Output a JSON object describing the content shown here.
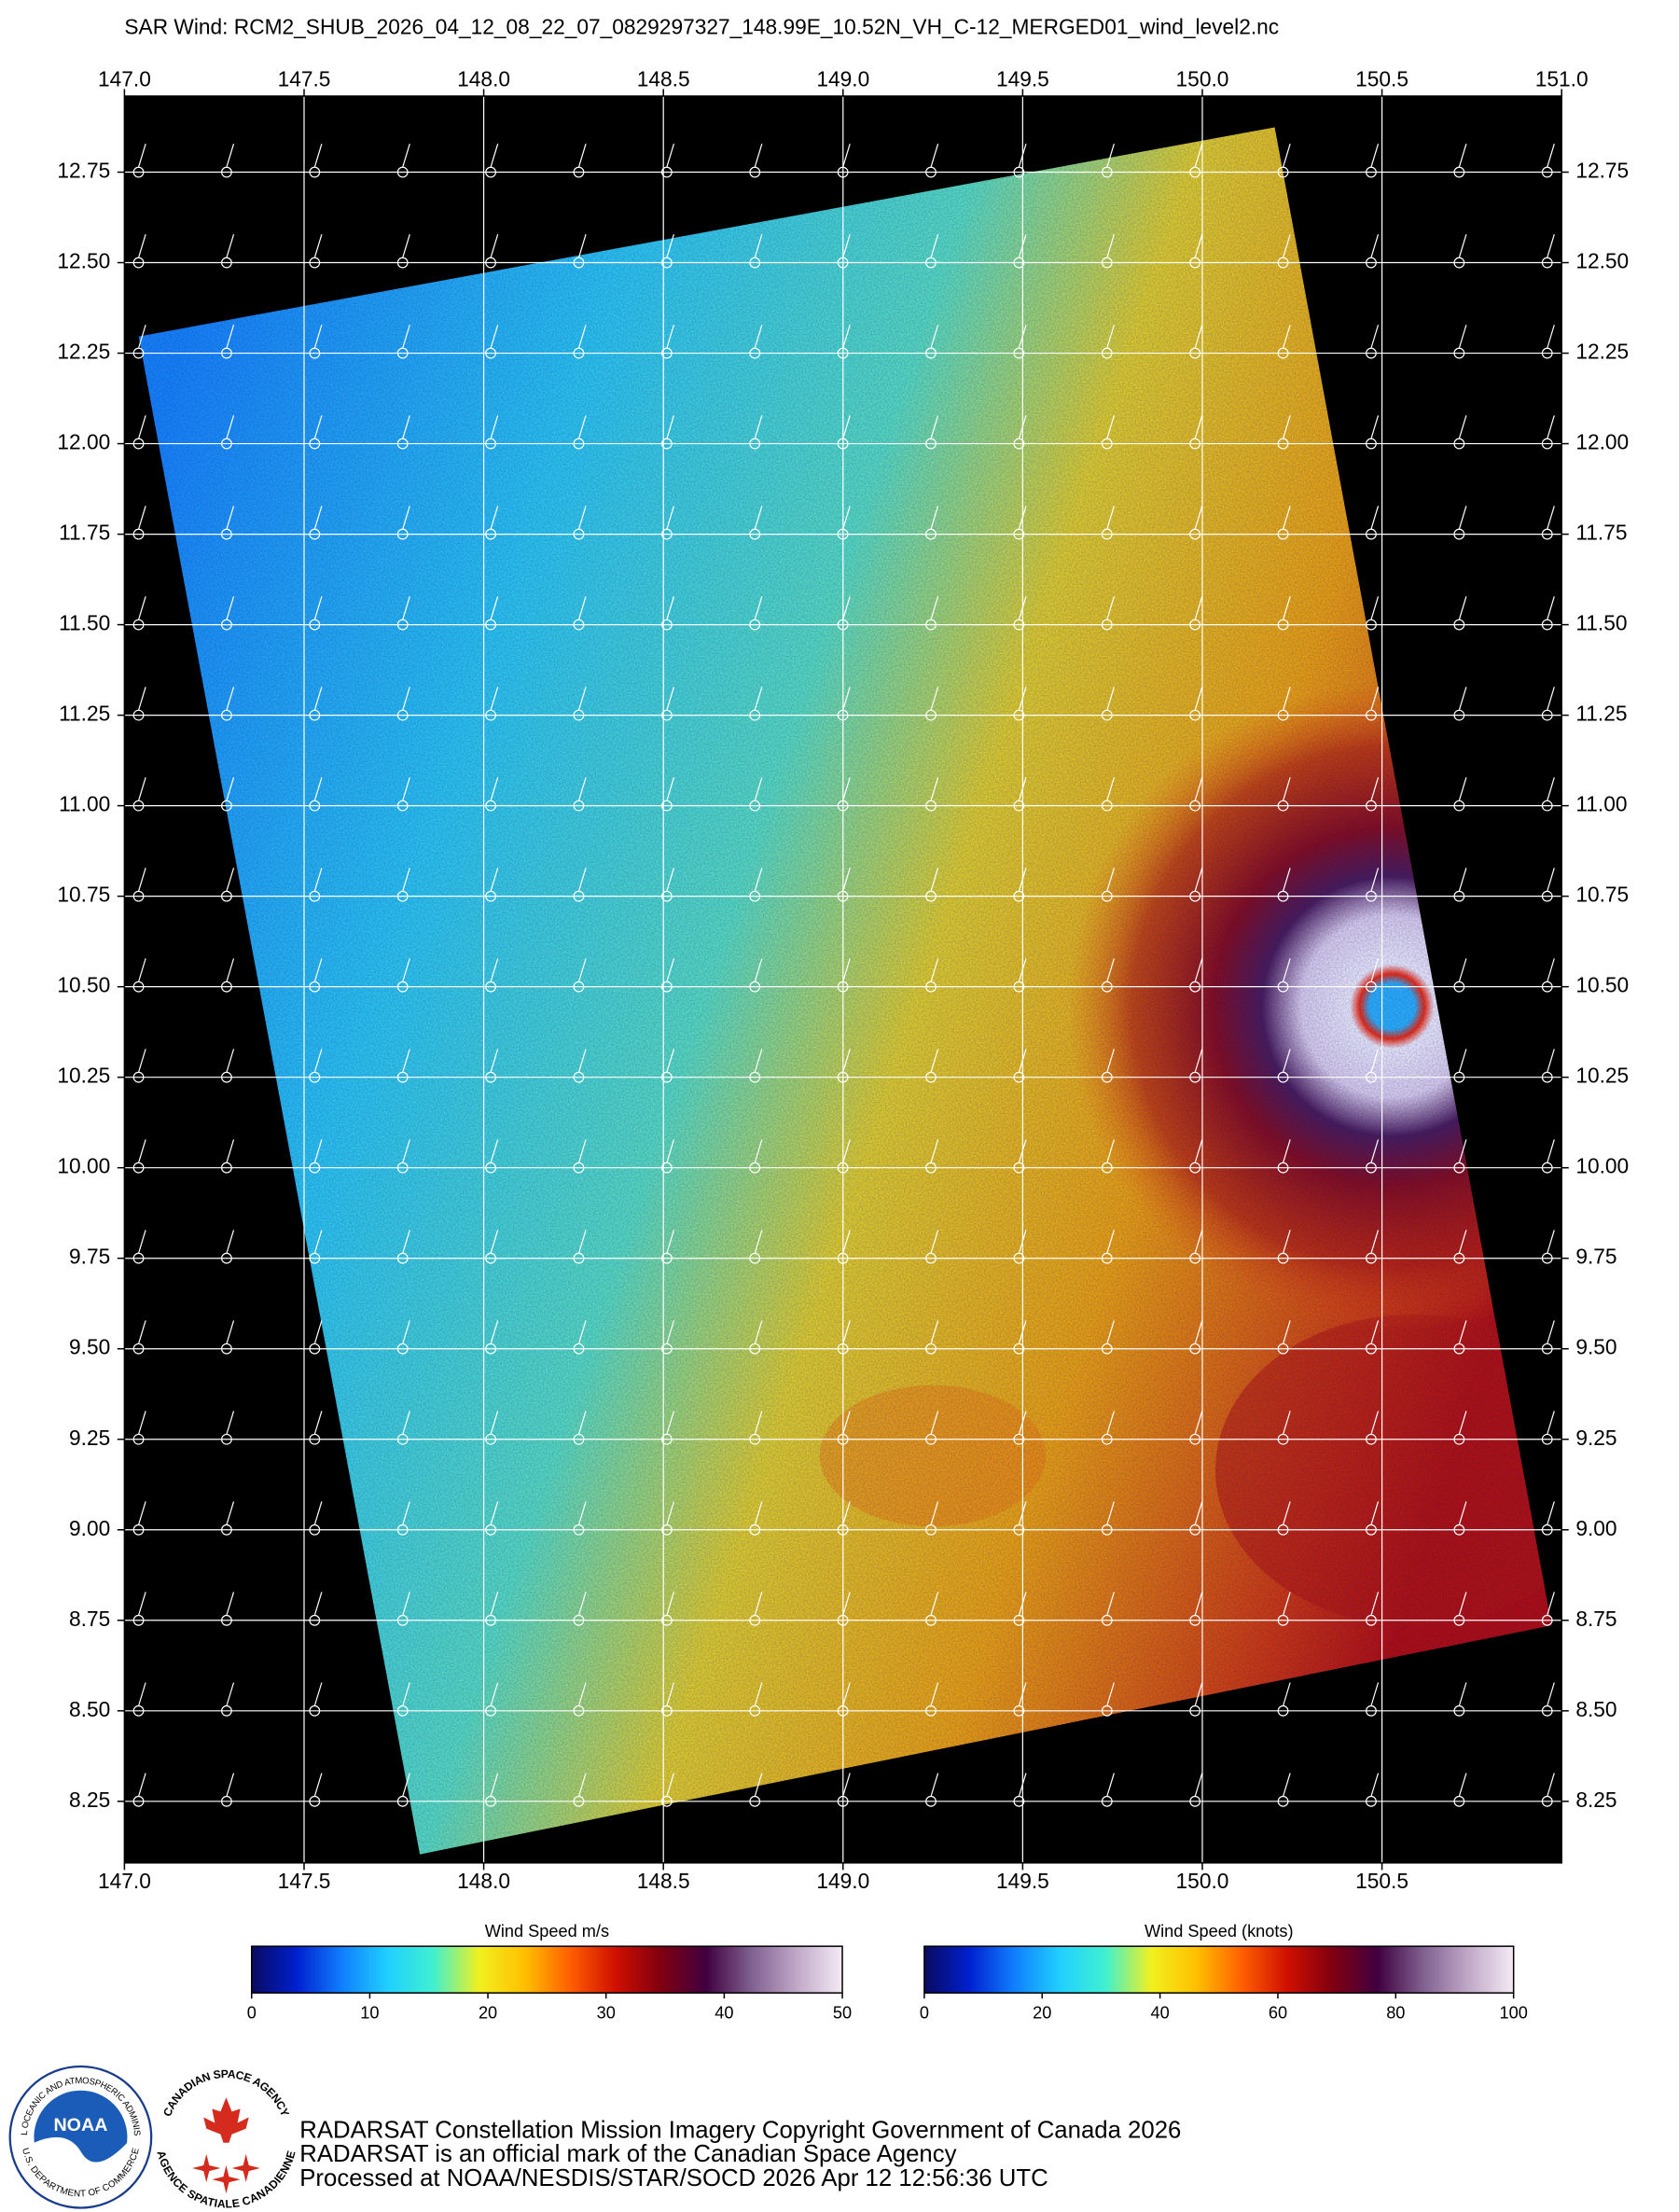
{
  "title": "SAR Wind: RCM2_SHUB_2026_04_12_08_22_07_0829297327_148.99E_10.52N_VH_C-12_MERGED01_wind_level2.nc",
  "chart_data": {
    "type": "map",
    "xlim": [
      147,
      151
    ],
    "ylim": [
      8.08,
      12.96
    ],
    "xticks": [
      {
        "value": 147,
        "label": "147.0"
      },
      147.5,
      {
        "value": 148,
        "label": "148.0"
      },
      148.5,
      {
        "value": 149,
        "label": "149.0"
      },
      149.5,
      {
        "value": 150,
        "label": "150.0"
      },
      150.5,
      {
        "value": 151,
        "label": "151.0"
      }
    ],
    "xticks_bottom": [
      {
        "value": 147,
        "label": "147.0"
      },
      147.5,
      {
        "value": 148,
        "label": "148.0"
      },
      148.5,
      {
        "value": 149,
        "label": "149.0"
      },
      149.5,
      {
        "value": 150,
        "label": "150.0"
      },
      150.5
    ],
    "yticks": [
      12.75,
      {
        "value": 12.5,
        "label": "12.50"
      },
      12.25,
      {
        "value": 12,
        "label": "12.00"
      },
      11.75,
      {
        "value": 11.5,
        "label": "11.50"
      },
      11.25,
      {
        "value": 11,
        "label": "11.00"
      },
      10.75,
      {
        "value": 10.5,
        "label": "10.50"
      },
      10.25,
      {
        "value": 10,
        "label": "10.00"
      },
      9.75,
      {
        "value": 9.5,
        "label": "9.50"
      },
      9.25,
      {
        "value": 9,
        "label": "9.00"
      },
      8.75,
      {
        "value": 8.5,
        "label": "8.50"
      },
      8.25
    ],
    "grid": true
  },
  "colormap": [
    "#0a0a60",
    "#0020d0",
    "#1080ff",
    "#20d0ff",
    "#40f0d0",
    "#f0f020",
    "#ffc000",
    "#ff6000",
    "#d01000",
    "#800010",
    "#400040",
    "#806090",
    "#c0a8c8",
    "#f4eaf4"
  ],
  "colorbars": [
    {
      "title": "Wind Speed m/s",
      "lim": [
        0,
        50
      ],
      "ticks": [
        0,
        10,
        20,
        30,
        40,
        50
      ]
    },
    {
      "title": "Wind Speed (knots)",
      "lim": [
        0,
        100
      ],
      "ticks": [
        0,
        20,
        40,
        60,
        80,
        100
      ]
    }
  ],
  "logos": {
    "noaa": {
      "name": "NOAA",
      "ring_top": "NATIONAL OCEANIC AND ATMOSPHERIC ADMINISTRATION",
      "ring_bottom": "U.S. DEPARTMENT OF COMMERCE"
    },
    "csa": {
      "ring_top": "CANADIAN SPACE AGENCY",
      "ring_bottom": "AGENCE SPATIALE CANADIENNE"
    }
  },
  "footer": [
    "RADARSAT Constellation Mission Imagery Copyright Government of Canada 2026",
    "RADARSAT is an official mark of the Canadian Space Agency",
    "Processed at NOAA/NESDIS/STAR/SOCD 2026 Apr 12 12:56:36 UTC"
  ]
}
